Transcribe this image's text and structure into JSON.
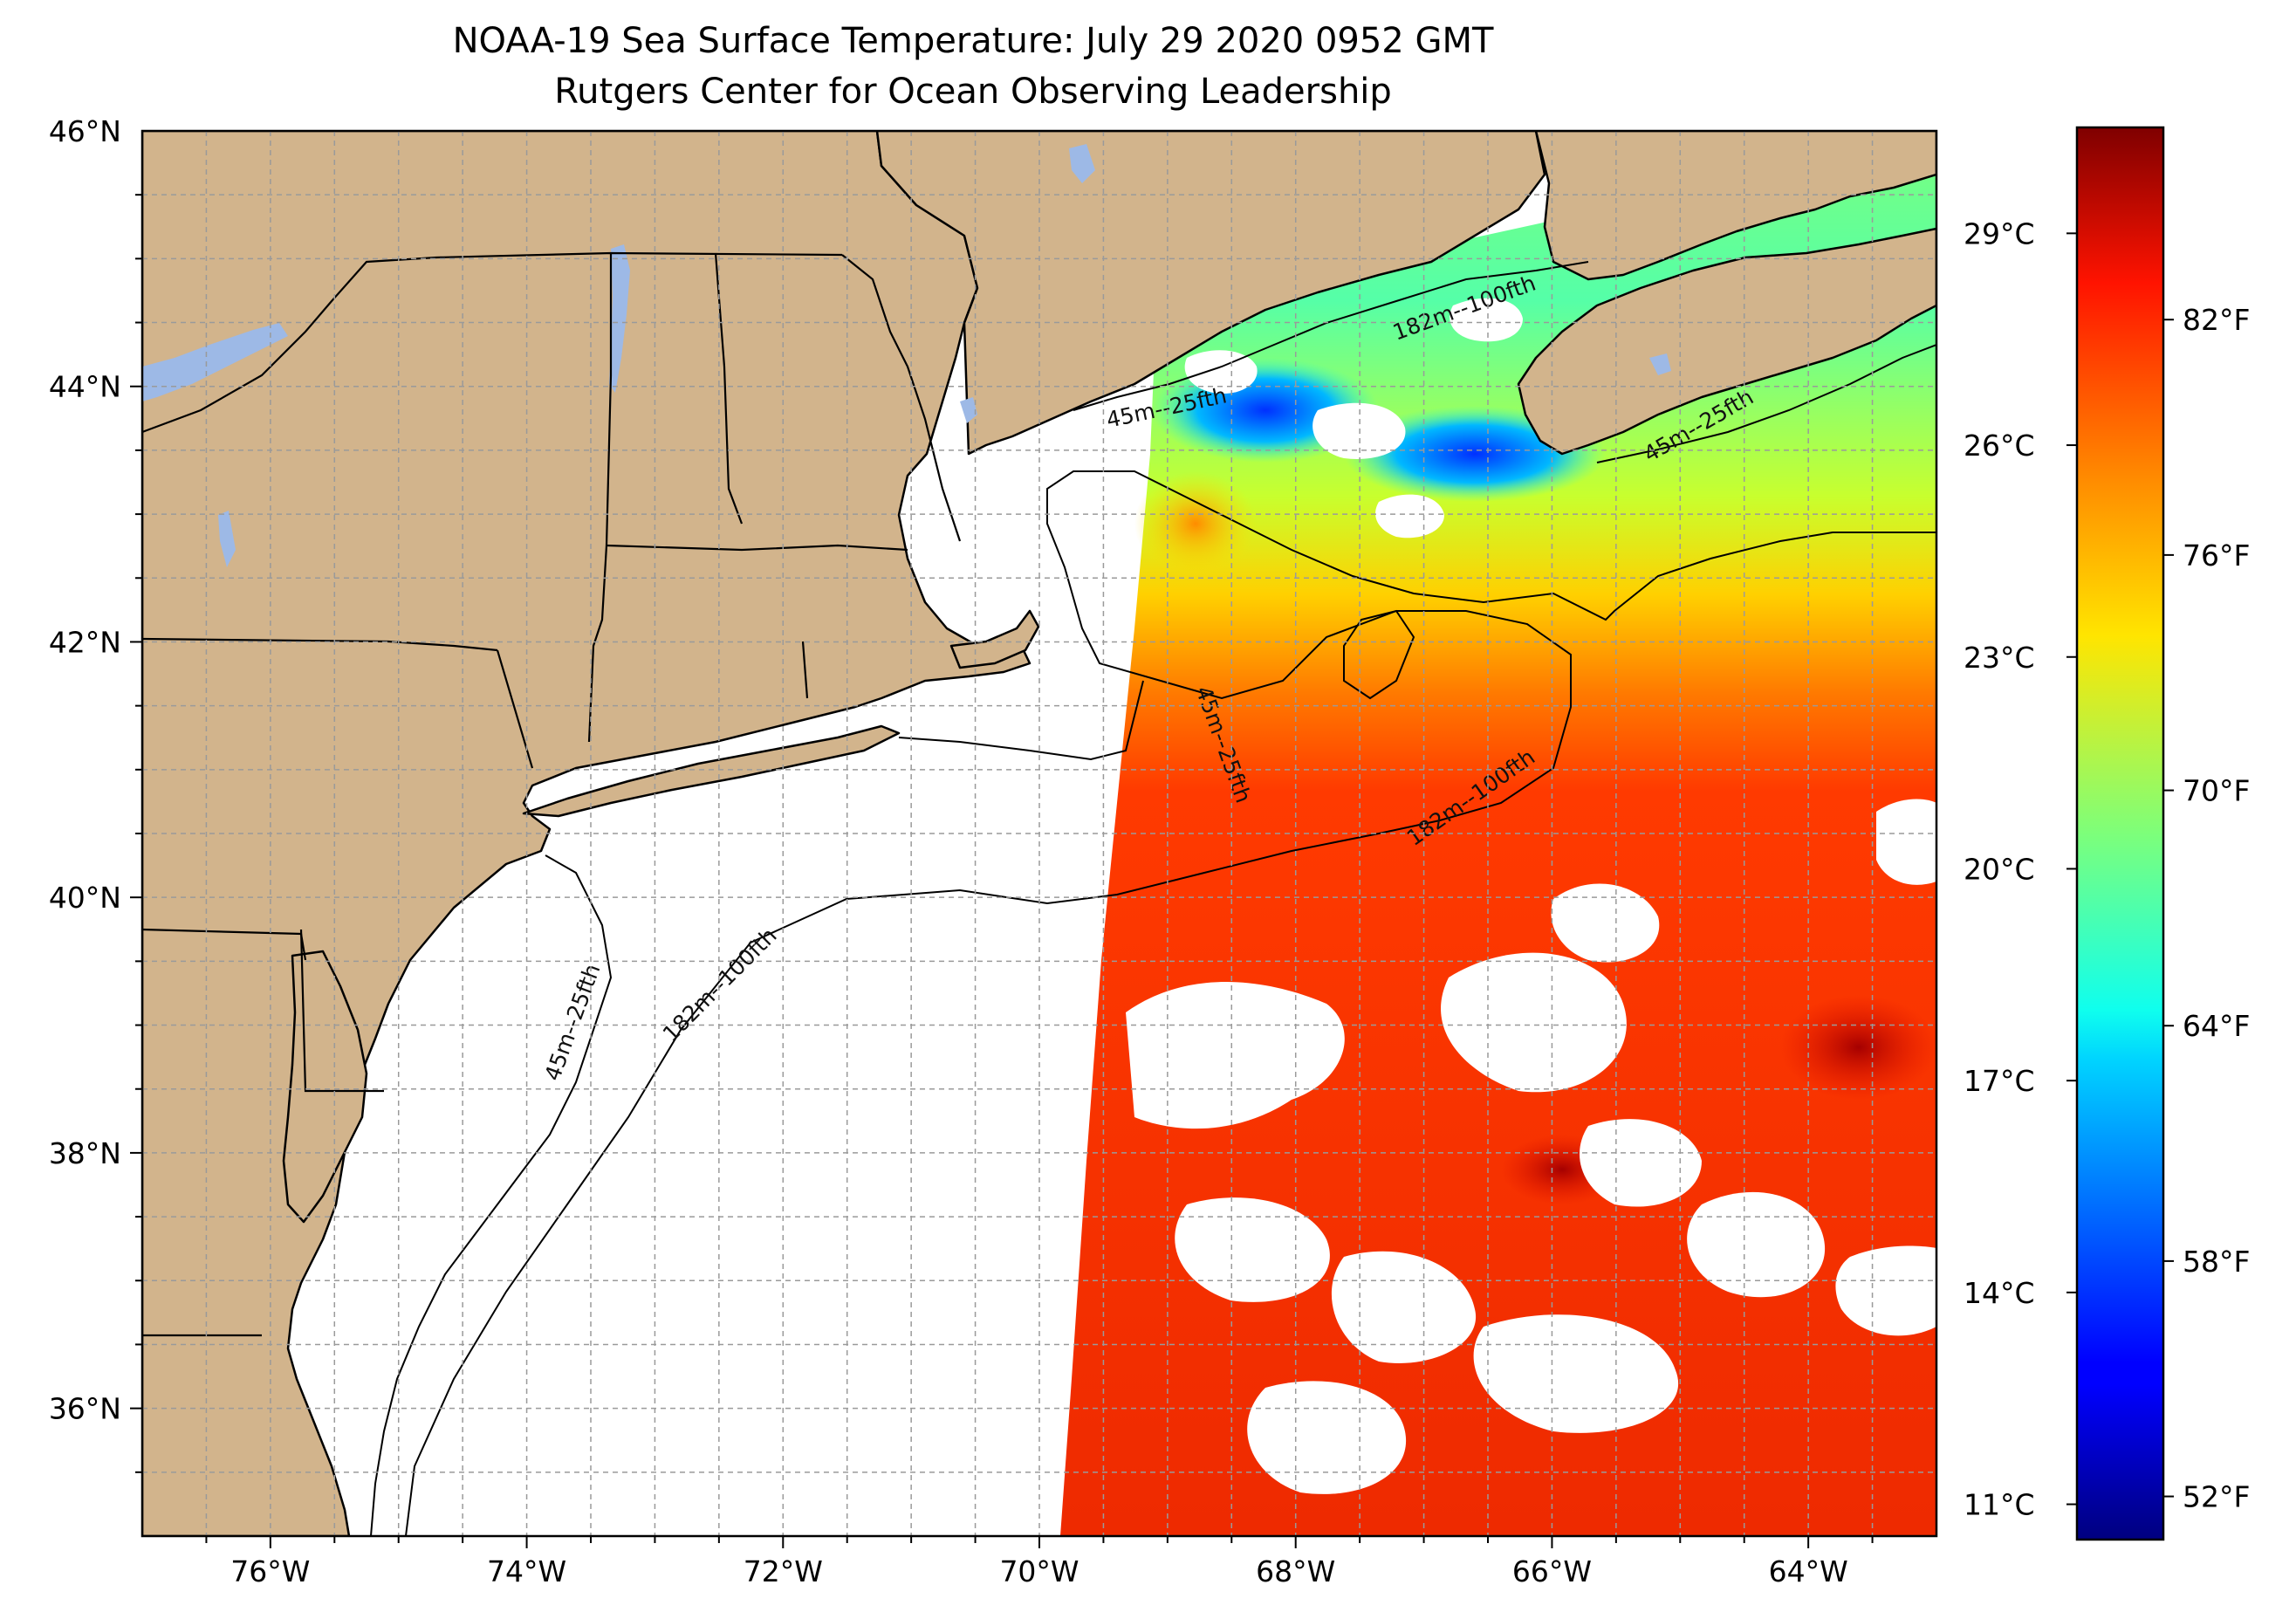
{
  "title": {
    "line1": "NOAA-19 Sea Surface Temperature: July 29 2020 0952 GMT",
    "line2": "Rutgers Center for Ocean Observing Leadership"
  },
  "map": {
    "lon_range": [
      -77,
      -63
    ],
    "lat_range": [
      35,
      46
    ],
    "lon_ticks": [
      "76°W",
      "74°W",
      "72°W",
      "70°W",
      "68°W",
      "66°W",
      "64°W"
    ],
    "lat_ticks": [
      "36°N",
      "38°N",
      "40°N",
      "42°N",
      "44°N",
      "46°N"
    ],
    "contour_labels": [
      "182m--100fth",
      "45m--25fth",
      "182m--100fth",
      "45m--25fth",
      "182m--100fth",
      "45m--25fth",
      "45m--25fth"
    ],
    "colors": {
      "land": "#D2B48C",
      "lake": "#9DB9E6",
      "no_data": "#ffffff"
    }
  },
  "colorbar": {
    "colormap": "jet",
    "celsius_range": [
      10.5,
      30.5
    ],
    "celsius_ticks": [
      "29°C",
      "26°C",
      "23°C",
      "20°C",
      "17°C",
      "14°C",
      "11°C"
    ],
    "fahrenheit_ticks": [
      "82°F",
      "76°F",
      "70°F",
      "64°F",
      "58°F",
      "52°F"
    ]
  }
}
